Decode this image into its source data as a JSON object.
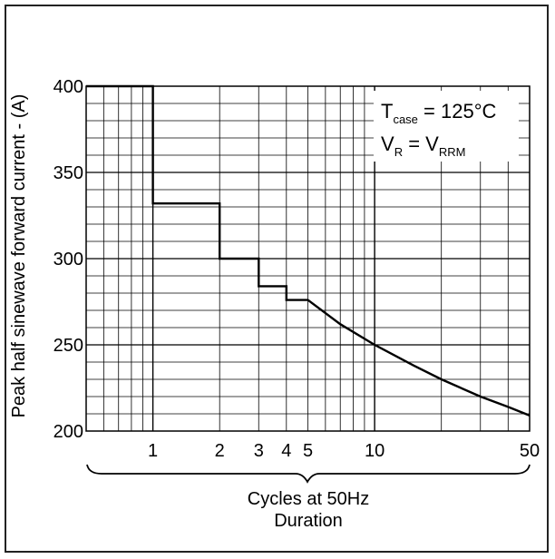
{
  "chart_data": {
    "type": "line",
    "title": "",
    "xlabel_lines": [
      "Cycles at 50Hz",
      "Duration"
    ],
    "ylabel": "Peak half sinewave forward current - (A)",
    "x_scale": "log",
    "xlim": [
      0.5,
      50
    ],
    "ylim": [
      200,
      400
    ],
    "y_ticks": [
      200,
      250,
      300,
      350,
      400
    ],
    "x_ticks": [
      1,
      2,
      3,
      4,
      5,
      10,
      50
    ],
    "grid": true,
    "annotation": {
      "line1": {
        "main": "T",
        "sub": "case",
        "rest": " = 125",
        "unit": "°C"
      },
      "line2": {
        "main": "V",
        "sub1": "R",
        "mid": " =  V",
        "sub2": "RRM"
      }
    },
    "series": [
      {
        "x": [
          0.5,
          1,
          1,
          2,
          2,
          3,
          3,
          4,
          4,
          5,
          5,
          7,
          10,
          15,
          20,
          30,
          40,
          50
        ],
        "y": [
          400,
          400,
          332,
          332,
          300,
          300,
          284,
          284,
          276,
          276,
          276,
          262,
          250,
          238,
          230,
          220,
          214,
          209
        ]
      }
    ],
    "colors": {
      "line": "#000000",
      "grid": "#000000",
      "frame": "#222222"
    }
  }
}
